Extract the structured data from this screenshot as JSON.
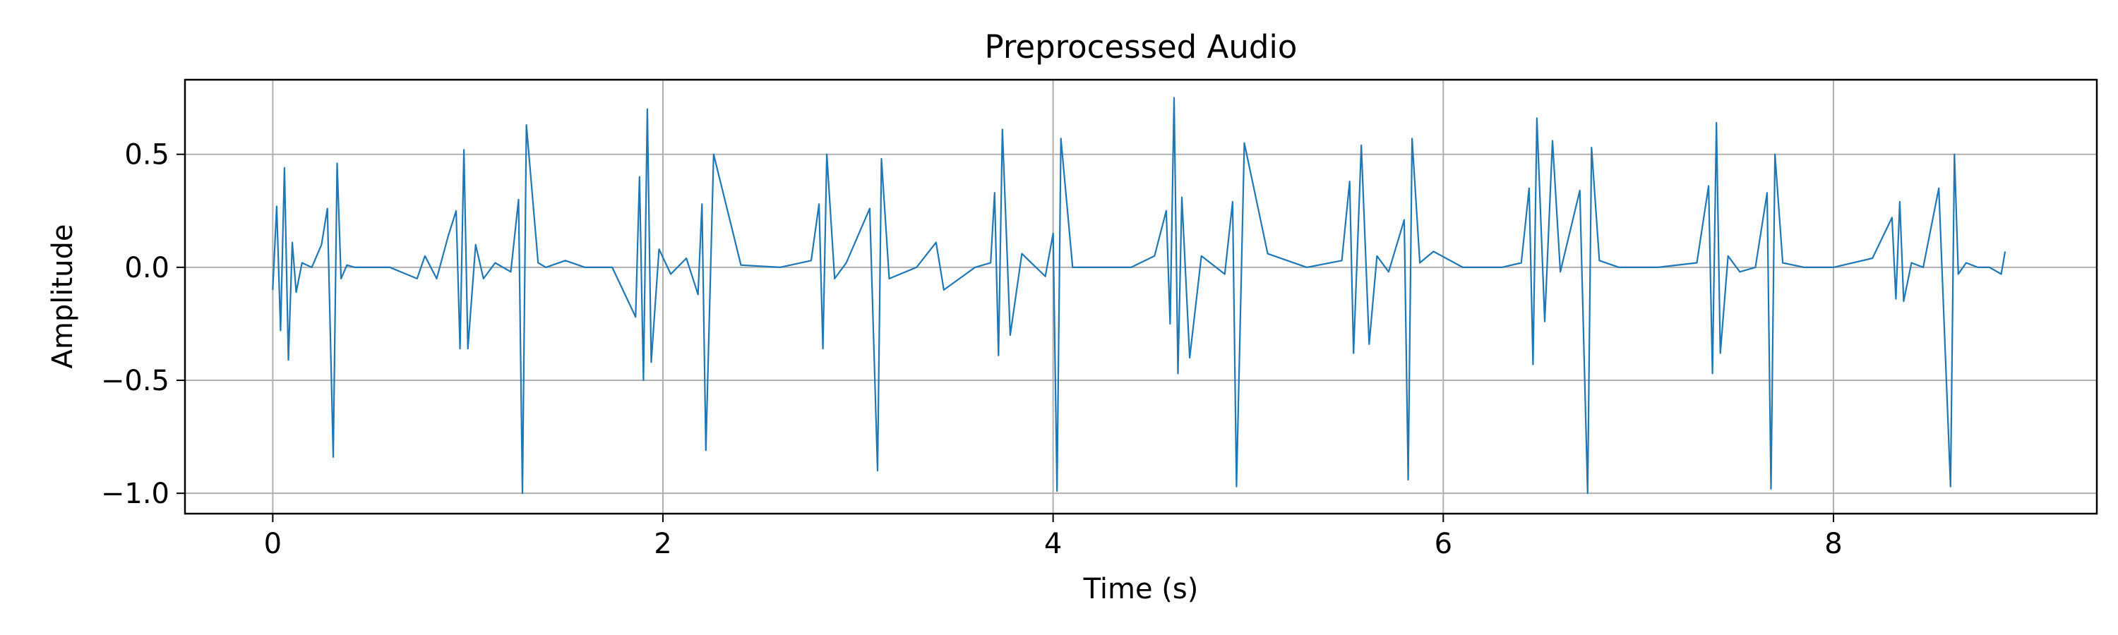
{
  "chart_data": {
    "type": "line",
    "title": "Preprocessed Audio",
    "xlabel": "Time (s)",
    "ylabel": "Amplitude",
    "xlim": [
      -0.45,
      9.35
    ],
    "ylim": [
      -1.09,
      0.83
    ],
    "xticks": [
      0,
      2,
      4,
      6,
      8
    ],
    "xtick_labels": [
      "0",
      "2",
      "4",
      "6",
      "8"
    ],
    "yticks": [
      0.5,
      0.0,
      -0.5,
      -1.0
    ],
    "ytick_labels": [
      "0.5",
      "0.0",
      "−0.5",
      "−1.0"
    ],
    "grid": true,
    "line_color": "#1f77b4",
    "series": [
      {
        "x": [
          0.0,
          0.02,
          0.04,
          0.06,
          0.08,
          0.1,
          0.12,
          0.15,
          0.2,
          0.25,
          0.28,
          0.31,
          0.33,
          0.35,
          0.38,
          0.42,
          0.5,
          0.6,
          0.74,
          0.78,
          0.84,
          0.9,
          0.94,
          0.96,
          0.98,
          1.0,
          1.04,
          1.08,
          1.14,
          1.22,
          1.26,
          1.28,
          1.3,
          1.36,
          1.4,
          1.5,
          1.6,
          1.74,
          1.86,
          1.88,
          1.9,
          1.92,
          1.94,
          1.98,
          2.04,
          2.12,
          2.18,
          2.2,
          2.22,
          2.26,
          2.4,
          2.6,
          2.76,
          2.8,
          2.82,
          2.84,
          2.88,
          2.94,
          3.06,
          3.1,
          3.12,
          3.16,
          3.3,
          3.4,
          3.44,
          3.6,
          3.68,
          3.7,
          3.72,
          3.74,
          3.78,
          3.84,
          3.96,
          4.0,
          4.02,
          4.04,
          4.1,
          4.2,
          4.4,
          4.52,
          4.58,
          4.6,
          4.62,
          4.64,
          4.66,
          4.7,
          4.76,
          4.88,
          4.92,
          4.94,
          4.98,
          5.1,
          5.3,
          5.48,
          5.52,
          5.54,
          5.58,
          5.62,
          5.66,
          5.72,
          5.8,
          5.82,
          5.84,
          5.88,
          5.95,
          6.1,
          6.3,
          6.4,
          6.44,
          6.46,
          6.48,
          6.52,
          6.56,
          6.6,
          6.7,
          6.74,
          6.76,
          6.8,
          6.9,
          7.1,
          7.3,
          7.36,
          7.38,
          7.4,
          7.42,
          7.46,
          7.52,
          7.6,
          7.66,
          7.68,
          7.7,
          7.74,
          7.85,
          8.0,
          8.2,
          8.3,
          8.32,
          8.34,
          8.36,
          8.4,
          8.46,
          8.54,
          8.6,
          8.62,
          8.64,
          8.68,
          8.74,
          8.8,
          8.86,
          8.88
        ],
        "y": [
          -0.1,
          0.27,
          -0.28,
          0.44,
          -0.41,
          0.11,
          -0.11,
          0.02,
          0.0,
          0.1,
          0.26,
          -0.84,
          0.46,
          -0.05,
          0.01,
          0.0,
          0.0,
          0.0,
          -0.05,
          0.05,
          -0.05,
          0.14,
          0.25,
          -0.36,
          0.52,
          -0.36,
          0.1,
          -0.05,
          0.02,
          -0.02,
          0.3,
          -1.0,
          0.63,
          0.02,
          0.0,
          0.03,
          0.0,
          0.0,
          -0.22,
          0.4,
          -0.5,
          0.7,
          -0.42,
          0.08,
          -0.03,
          0.04,
          -0.12,
          0.28,
          -0.81,
          0.5,
          0.01,
          0.0,
          0.03,
          0.28,
          -0.36,
          0.5,
          -0.05,
          0.02,
          0.26,
          -0.9,
          0.48,
          -0.05,
          0.0,
          0.11,
          -0.1,
          0.0,
          0.02,
          0.33,
          -0.39,
          0.61,
          -0.3,
          0.06,
          -0.04,
          0.15,
          -0.99,
          0.57,
          0.0,
          0.0,
          0.0,
          0.05,
          0.25,
          -0.25,
          0.75,
          -0.47,
          0.31,
          -0.4,
          0.05,
          -0.03,
          0.29,
          -0.97,
          0.55,
          0.06,
          0.0,
          0.03,
          0.38,
          -0.38,
          0.54,
          -0.34,
          0.05,
          -0.02,
          0.21,
          -0.94,
          0.57,
          0.02,
          0.07,
          0.0,
          0.0,
          0.02,
          0.35,
          -0.43,
          0.66,
          -0.24,
          0.56,
          -0.02,
          0.34,
          -1.0,
          0.53,
          0.03,
          0.0,
          0.0,
          0.02,
          0.36,
          -0.47,
          0.64,
          -0.38,
          0.05,
          -0.02,
          0.0,
          0.33,
          -0.98,
          0.5,
          0.02,
          0.0,
          0.0,
          0.04,
          0.22,
          -0.14,
          0.29,
          -0.15,
          0.02,
          0.0,
          0.35,
          -0.97,
          0.5,
          -0.03,
          0.02,
          0.0,
          0.0,
          -0.03,
          0.07
        ]
      }
    ]
  }
}
